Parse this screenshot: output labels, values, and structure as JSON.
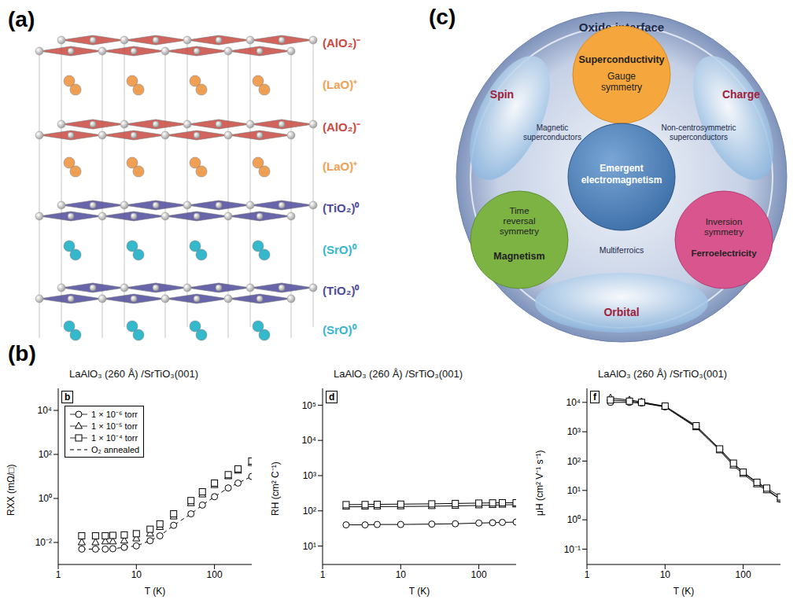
{
  "panels": {
    "a": {
      "label": "(a)",
      "layers": [
        {
          "text": "(AlO₂)⁻",
          "color": "#c9493f"
        },
        {
          "text": "(LaO)⁺",
          "color": "#f0a054"
        },
        {
          "text": "(AlO₂)⁻",
          "color": "#c9493f"
        },
        {
          "text": "(LaO)⁺",
          "color": "#f0a054"
        },
        {
          "text": "(TiO₂)⁰",
          "color": "#4e4a9c"
        },
        {
          "text": "(SrO)⁰",
          "color": "#35b7cc"
        },
        {
          "text": "(TiO₂)⁰",
          "color": "#4e4a9c"
        },
        {
          "text": "(SrO)⁰",
          "color": "#35b7cc"
        }
      ]
    },
    "b": {
      "label": "(b)"
    },
    "c": {
      "label": "(c)",
      "title": "Oxide interface",
      "regions": {
        "spin": "Spin",
        "charge": "Charge",
        "orbital": "Orbital"
      },
      "circles": {
        "top": {
          "title": "Superconductivity",
          "subtitle": "Gauge symmetry",
          "color": "#f5a63c"
        },
        "center": {
          "title": "Emergent electromagnetism",
          "color": "#3d6fa8"
        },
        "left": {
          "title": "Magnetism",
          "subtitle": "Time reversal symmetry",
          "color": "#7cb342"
        },
        "right": {
          "title": "Ferroelectricity",
          "subtitle": "Inversion symmetry",
          "color": "#d9558e"
        }
      },
      "overlaps": {
        "left": "Magnetic superconductors",
        "right": "Non-centrosymmetric superconductors",
        "bottom": "Multiferroics"
      }
    }
  },
  "chart_data": [
    {
      "type": "line",
      "title": "LaAlO₃ (260 Å) /SrTiO₃(001)",
      "annotation": "b",
      "x_label": "T (K)",
      "y_label": "RXX (mΩ/□)",
      "log": true,
      "legend": "upper left",
      "xlim": [
        1,
        300
      ],
      "xticks": [
        1,
        10,
        100
      ],
      "ylim": [
        0.001,
        100000
      ],
      "yticks": [
        {
          "value": 0.01,
          "label": "10⁻²"
        },
        {
          "value": 1,
          "label": "10⁰"
        },
        {
          "value": 100,
          "label": "10²"
        },
        {
          "value": 10000,
          "label": "10⁴"
        }
      ],
      "x": [
        2,
        3,
        4,
        5,
        7,
        10,
        15,
        20,
        30,
        50,
        70,
        100,
        150,
        200,
        300
      ],
      "series": [
        {
          "name": "1 × 10⁻⁶ torr",
          "marker": "circle",
          "line_style": "none",
          "color": "#000000",
          "values": [
            0.005,
            0.005,
            0.005,
            0.0052,
            0.006,
            0.007,
            0.012,
            0.02,
            0.06,
            0.2,
            0.5,
            1.2,
            3,
            5,
            10
          ]
        },
        {
          "name": "1 × 10⁻⁵ torr",
          "marker": "triangle",
          "line_style": "none",
          "color": "#000000",
          "values": [
            0.01,
            0.01,
            0.011,
            0.011,
            0.012,
            0.015,
            0.025,
            0.05,
            0.15,
            0.6,
            1.5,
            4,
            10,
            18,
            40
          ]
        },
        {
          "name": "1 × 10⁻⁴ torr",
          "marker": "square",
          "line_style": "none",
          "color": "#000000",
          "values": [
            0.02,
            0.02,
            0.02,
            0.021,
            0.022,
            0.025,
            0.04,
            0.07,
            0.2,
            0.8,
            2,
            5,
            12,
            22,
            50
          ]
        },
        {
          "name": "O₂ annealed",
          "marker": "none",
          "line_style": "dashed",
          "color": "#000000",
          "values": [
            0.005,
            0.005,
            0.005,
            0.0052,
            0.006,
            0.007,
            0.012,
            0.02,
            0.06,
            0.2,
            0.5,
            1.2,
            3,
            5,
            10
          ]
        }
      ]
    },
    {
      "type": "line",
      "title": "LaAlO₃ (260 Å) /SrTiO₃(001)",
      "annotation": "d",
      "x_label": "T (K)",
      "y_label": "RH (cm² C⁻¹)",
      "log": true,
      "xlim": [
        1,
        300
      ],
      "xticks": [
        1,
        10,
        100
      ],
      "ylim": [
        3,
        300000
      ],
      "yticks": [
        {
          "value": 10,
          "label": "10¹"
        },
        {
          "value": 100,
          "label": "10²"
        },
        {
          "value": 1000,
          "label": "10³"
        },
        {
          "value": 10000,
          "label": "10⁴"
        },
        {
          "value": 100000,
          "label": "10⁵"
        }
      ],
      "x": [
        2,
        3.5,
        5,
        10,
        25,
        50,
        100,
        150,
        200,
        300
      ],
      "series": [
        {
          "marker": "circle",
          "line_style": "solid",
          "color": "#000000",
          "values": [
            40,
            40,
            41,
            41,
            42,
            43,
            45,
            46,
            47,
            48
          ]
        },
        {
          "marker": "triangle",
          "line_style": "solid",
          "color": "#000000",
          "values": [
            130,
            131,
            132,
            133,
            135,
            138,
            142,
            145,
            148,
            150
          ]
        },
        {
          "marker": "square",
          "line_style": "solid",
          "color": "#000000",
          "values": [
            150,
            151,
            153,
            155,
            158,
            162,
            166,
            168,
            170,
            170
          ]
        }
      ]
    },
    {
      "type": "line",
      "title": "LaAlO₃ (260 Å) /SrTiO₃(001)",
      "annotation": "f",
      "x_label": "T (K)",
      "y_label": "μH (cm² V⁻¹ s⁻¹)",
      "log": true,
      "xlim": [
        1,
        300
      ],
      "xticks": [
        1,
        10,
        100
      ],
      "ylim": [
        0.03,
        30000
      ],
      "yticks": [
        {
          "value": 0.1,
          "label": "10⁻¹"
        },
        {
          "value": 1,
          "label": "10⁰"
        },
        {
          "value": 10,
          "label": "10¹"
        },
        {
          "value": 100,
          "label": "10²"
        },
        {
          "value": 1000,
          "label": "10³"
        },
        {
          "value": 10000,
          "label": "10⁴"
        }
      ],
      "x": [
        2,
        3.5,
        5,
        10,
        25,
        50,
        75,
        100,
        150,
        200,
        300
      ],
      "series": [
        {
          "marker": "circle",
          "line_style": "solid",
          "color": "#000000",
          "values": [
            10000,
            10000,
            9500,
            7000,
            1500,
            250,
            80,
            40,
            18,
            11,
            5
          ]
        },
        {
          "marker": "triangle",
          "line_style": "solid",
          "color": "#000000",
          "values": [
            14000,
            12000,
            10500,
            7000,
            1400,
            230,
            70,
            36,
            16,
            10,
            5
          ]
        },
        {
          "marker": "square",
          "line_style": "solid",
          "color": "#000000",
          "values": [
            12000,
            11000,
            10000,
            7500,
            1600,
            260,
            85,
            42,
            19,
            12,
            6
          ]
        }
      ]
    }
  ]
}
